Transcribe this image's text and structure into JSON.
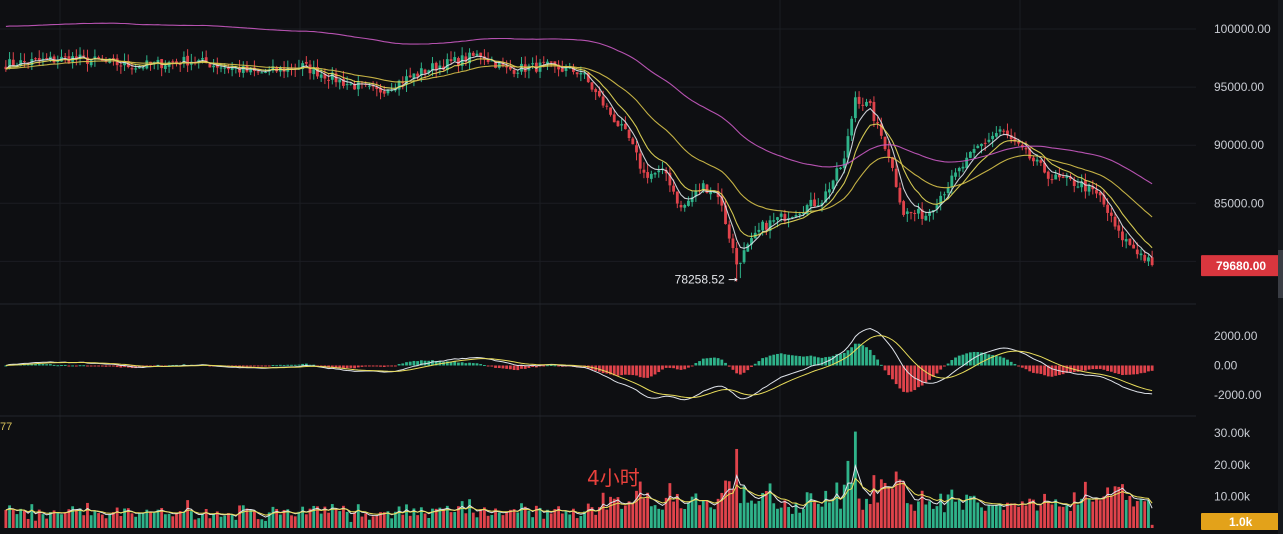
{
  "timeframe_label": "4小时",
  "partial_indicator_text": "77",
  "colors": {
    "up": "#2fb38a",
    "down": "#e0434b",
    "ma_fast": "#dfe3ea",
    "ma_mid": "#e8dc5a",
    "ma_slow": "#d7c24a",
    "ma_long": "#c95ac2",
    "grid": "#1b1d22",
    "tag_price": "#d9363e",
    "tag_volume": "#e3a21a"
  },
  "chart_data": [
    {
      "type": "candlestick",
      "pane": "price",
      "ylim": [
        76500,
        102500
      ],
      "y_ticks": [
        "100000.00",
        "95000.00",
        "90000.00",
        "85000.00"
      ],
      "last_price_label": "79680.00",
      "last_price": 79680,
      "low_annotation": "78258.52",
      "low_value": 78258.52,
      "anchors": [
        [
          0,
          97000
        ],
        [
          18,
          97500
        ],
        [
          35,
          96800
        ],
        [
          50,
          97300
        ],
        [
          68,
          96200
        ],
        [
          80,
          96800
        ],
        [
          92,
          95300
        ],
        [
          100,
          94600
        ],
        [
          115,
          96700
        ],
        [
          128,
          97800
        ],
        [
          135,
          96500
        ],
        [
          145,
          96800
        ],
        [
          155,
          96300
        ],
        [
          160,
          94000
        ],
        [
          168,
          90500
        ],
        [
          172,
          87500
        ],
        [
          178,
          87600
        ],
        [
          182,
          84500
        ],
        [
          188,
          86500
        ],
        [
          192,
          85800
        ],
        [
          197,
          79800
        ],
        [
          204,
          83000
        ],
        [
          212,
          84200
        ],
        [
          220,
          85300
        ],
        [
          226,
          88700
        ],
        [
          229,
          94200
        ],
        [
          233,
          93200
        ],
        [
          238,
          89200
        ],
        [
          242,
          84200
        ],
        [
          248,
          84000
        ],
        [
          255,
          87000
        ],
        [
          262,
          89800
        ],
        [
          268,
          91300
        ],
        [
          275,
          89200
        ],
        [
          282,
          87200
        ],
        [
          290,
          86600
        ],
        [
          295,
          85500
        ],
        [
          300,
          82300
        ],
        [
          304,
          81200
        ],
        [
          309,
          79680
        ]
      ],
      "ma_series": [
        {
          "window": 5,
          "color_key": "ma_fast"
        },
        {
          "window": 10,
          "color_key": "ma_mid"
        },
        {
          "window": 30,
          "color_key": "ma_slow"
        },
        {
          "window": 120,
          "color_key": "ma_long"
        }
      ]
    },
    {
      "type": "macd",
      "pane": "macd",
      "ylim": [
        -3000,
        3200
      ],
      "y_ticks": [
        "2000.00",
        "0.00",
        "-2000.00"
      ]
    },
    {
      "type": "bar",
      "pane": "volume",
      "ylim": [
        0,
        31000
      ],
      "y_ticks": [
        "30.00k",
        "20.00k",
        "10.00k"
      ],
      "last_volume_label": "1.0k"
    }
  ]
}
